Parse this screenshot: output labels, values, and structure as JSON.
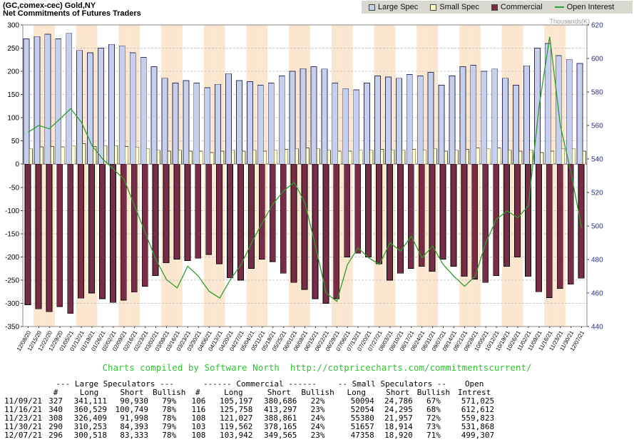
{
  "header": {
    "title_line1": "(GC,comex-cec) Gold,NY",
    "title_line2": "Net Commitments of Futures Traders"
  },
  "legend": {
    "items": [
      {
        "label": "Large Spec",
        "type": "square",
        "color": "#c6cfec"
      },
      {
        "label": "Small Spec",
        "type": "square",
        "color": "#ffffd2"
      },
      {
        "label": "Commercial",
        "type": "square",
        "color": "#772d45"
      },
      {
        "label": "Open Interest",
        "type": "line",
        "color": "#2e9e2e"
      }
    ]
  },
  "chart_data": {
    "type": "bar",
    "title": "(GC,comex-cec) Gold,NY - Net Commitments of Futures Traders",
    "categories": [
      "12/08/20",
      "12/15/20",
      "12/22/20",
      "12/29/20",
      "01/05/21",
      "01/12/21",
      "01/19/21",
      "01/26/21",
      "02/02/21",
      "02/09/21",
      "02/16/21",
      "02/23/21",
      "03/02/21",
      "03/09/21",
      "03/16/21",
      "03/23/21",
      "03/30/21",
      "04/06/21",
      "04/13/21",
      "04/20/21",
      "04/27/21",
      "05/04/21",
      "05/11/21",
      "05/18/21",
      "05/25/21",
      "06/01/21",
      "06/08/21",
      "06/15/21",
      "06/22/21",
      "06/29/21",
      "07/06/21",
      "07/13/21",
      "07/20/21",
      "07/27/21",
      "08/03/21",
      "08/10/21",
      "08/17/21",
      "08/24/21",
      "08/31/21",
      "09/07/21",
      "09/14/21",
      "09/21/21",
      "09/28/21",
      "10/05/21",
      "10/12/21",
      "10/19/21",
      "10/26/21",
      "11/02/21",
      "11/09/21",
      "11/16/21",
      "11/23/21",
      "11/30/21",
      "12/07/21"
    ],
    "series": [
      {
        "name": "Large Spec",
        "type": "bar",
        "axis": "left",
        "color": "#c6cfec",
        "stroke": "#333355",
        "values": [
          270,
          275,
          280,
          270,
          282,
          245,
          240,
          250,
          258,
          255,
          240,
          230,
          210,
          185,
          175,
          180,
          175,
          165,
          172,
          195,
          180,
          178,
          170,
          175,
          190,
          200,
          206,
          210,
          205,
          175,
          163,
          160,
          175,
          190,
          188,
          185,
          193,
          190,
          198,
          170,
          190,
          210,
          213,
          200,
          205,
          185,
          170,
          212,
          250,
          260,
          234,
          226,
          217
        ]
      },
      {
        "name": "Small Spec",
        "type": "bar",
        "axis": "left",
        "color": "#ffffd2",
        "stroke": "#555544",
        "values": [
          33,
          37,
          38,
          37,
          40,
          44,
          38,
          40,
          40,
          38,
          36,
          33,
          30,
          28,
          30,
          28,
          28,
          25,
          28,
          30,
          28,
          30,
          28,
          30,
          32,
          33,
          35,
          33,
          30,
          28,
          28,
          30,
          30,
          32,
          30,
          30,
          32,
          30,
          33,
          28,
          30,
          32,
          35,
          33,
          35,
          30,
          28,
          30,
          25,
          28,
          33,
          33,
          28
        ]
      },
      {
        "name": "Commercial",
        "type": "bar",
        "axis": "left",
        "color": "#772d45",
        "stroke": "#000000",
        "values": [
          -303,
          -312,
          -318,
          -307,
          -322,
          -289,
          -278,
          -290,
          -298,
          -293,
          -276,
          -263,
          -240,
          -213,
          -205,
          -208,
          -203,
          -195,
          -215,
          -245,
          -250,
          -225,
          -205,
          -210,
          -235,
          -255,
          -270,
          -290,
          -300,
          -290,
          -200,
          -192,
          -200,
          -215,
          -250,
          -235,
          -225,
          -220,
          -231,
          -205,
          -220,
          -242,
          -248,
          -255,
          -240,
          -220,
          -200,
          -242,
          -275,
          -288,
          -268,
          -259,
          -246
        ]
      },
      {
        "name": "Open Interest",
        "type": "line",
        "axis": "right",
        "color": "#2e9e2e",
        "values": [
          556,
          560,
          558,
          564,
          570,
          562,
          548,
          540,
          534,
          528,
          512,
          496,
          480,
          468,
          463,
          476,
          470,
          461,
          457,
          468,
          477,
          490,
          502,
          513,
          521,
          526,
          514,
          488,
          460,
          455,
          477,
          487,
          481,
          477,
          490,
          485,
          494,
          481,
          488,
          477,
          470,
          464,
          470,
          490,
          504,
          509,
          505,
          512,
          571,
          613,
          560,
          532,
          499
        ]
      }
    ],
    "left_axis": {
      "min": -350,
      "max": 300,
      "step": 50,
      "ticks": [
        300,
        250,
        200,
        150,
        100,
        50,
        0,
        -50,
        -100,
        -150,
        -200,
        -250,
        -300,
        -350
      ]
    },
    "right_axis": {
      "min": 440,
      "max": 620,
      "step": 20,
      "title": "Thousands(K)",
      "ticks": [
        620,
        600,
        580,
        560,
        540,
        520,
        500,
        480,
        460,
        440
      ]
    },
    "grid": true,
    "legend_position": "top-right",
    "colors": {
      "stripe": "#fbe7cf",
      "gridline": "#c8c8c8",
      "zero_line": "#555555",
      "left_axis_text": "#000000",
      "right_axis_text": "#2d2d86",
      "plot_border": "#888888"
    }
  },
  "footer": {
    "credit": "Charts compiled by Software North  http://cotpricecharts.com/commitmentscurrent/"
  },
  "table": {
    "group_headers": [
      {
        "label": "",
        "span": 1
      },
      {
        "label": "--- Large Speculators ---",
        "span": 4
      },
      {
        "label": "------ Commercial ------",
        "span": 4
      },
      {
        "label": "-- Small Speculators --",
        "span": 3
      },
      {
        "label": "Open",
        "span": 1
      }
    ],
    "col_headers": [
      "",
      "#",
      "Long",
      "Short",
      "Bullish",
      "#",
      "Long",
      "Short",
      "Bullish",
      "Long",
      "Short",
      "Bullish",
      "Intrest"
    ],
    "rows": [
      [
        "11/09/21",
        "327",
        "341,111",
        "90,930",
        "79%",
        "106",
        "105,197",
        "380,686",
        "22%",
        "50094",
        "24,786",
        "67%",
        "571,025"
      ],
      [
        "11/16/21",
        "340",
        "360,529",
        "100,749",
        "78%",
        "116",
        "125,758",
        "413,297",
        "23%",
        "52054",
        "24,295",
        "68%",
        "612,612"
      ],
      [
        "11/23/21",
        "308",
        "326,409",
        "91,998",
        "78%",
        "108",
        "121,027",
        "388,861",
        "24%",
        "55380",
        "21,957",
        "72%",
        "559,823"
      ],
      [
        "11/30/21",
        "290",
        "310,253",
        "84,393",
        "79%",
        "103",
        "119,562",
        "378,165",
        "24%",
        "51657",
        "18,914",
        "73%",
        "531,868"
      ],
      [
        "12/07/21",
        "296",
        "300,518",
        "83,333",
        "78%",
        "108",
        "103,942",
        "349,565",
        "23%",
        "47358",
        "18,920",
        "71%",
        "499,307"
      ]
    ]
  }
}
